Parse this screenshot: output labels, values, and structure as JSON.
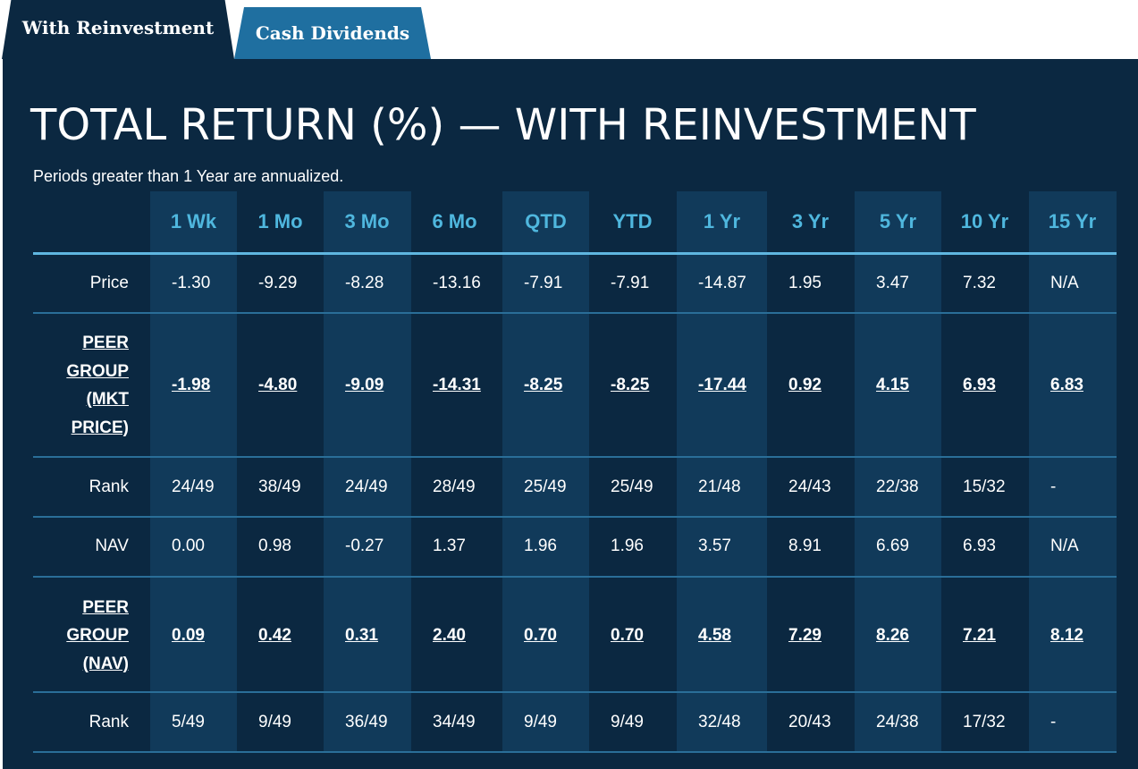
{
  "tabs": [
    {
      "label": "With Reinvestment",
      "active": true
    },
    {
      "label": "Cash Dividends",
      "active": false
    }
  ],
  "title": "TOTAL RETURN (%) — WITH REINVESTMENT",
  "subtitle": "Periods greater than 1 Year are annualized.",
  "columns": [
    "1 Wk",
    "1 Mo",
    "3 Mo",
    "6 Mo",
    "QTD",
    "YTD",
    "1 Yr",
    "3 Yr",
    "5 Yr",
    "10 Yr",
    "15 Yr"
  ],
  "rows": [
    {
      "label": "Price",
      "link": false,
      "values": [
        "-1.30",
        "-9.29",
        "-8.28",
        "-13.16",
        "-7.91",
        "-7.91",
        "-14.87",
        "1.95",
        "3.47",
        "7.32",
        "N/A"
      ]
    },
    {
      "label": "PEER GROUP (MKT PRICE)",
      "label_lines": [
        "PEER",
        "GROUP",
        "(MKT",
        "PRICE)"
      ],
      "link": true,
      "values": [
        "-1.98",
        "-4.80",
        "-9.09",
        "-14.31",
        "-8.25",
        "-8.25",
        "-17.44",
        "0.92",
        "4.15",
        "6.93",
        "6.83"
      ]
    },
    {
      "label": "Rank",
      "link": false,
      "values": [
        "24/49",
        "38/49",
        "24/49",
        "28/49",
        "25/49",
        "25/49",
        "21/48",
        "24/43",
        "22/38",
        "15/32",
        "-"
      ]
    },
    {
      "label": "NAV",
      "link": false,
      "values": [
        "0.00",
        "0.98",
        "-0.27",
        "1.37",
        "1.96",
        "1.96",
        "3.57",
        "8.91",
        "6.69",
        "6.93",
        "N/A"
      ]
    },
    {
      "label": "PEER GROUP (NAV)",
      "label_lines": [
        "PEER",
        "GROUP",
        "(NAV)"
      ],
      "link": true,
      "values": [
        "0.09",
        "0.42",
        "0.31",
        "2.40",
        "0.70",
        "0.70",
        "4.58",
        "7.29",
        "8.26",
        "7.21",
        "8.12"
      ]
    },
    {
      "label": "Rank",
      "link": false,
      "values": [
        "5/49",
        "9/49",
        "36/49",
        "34/49",
        "9/49",
        "9/49",
        "32/48",
        "20/43",
        "24/38",
        "17/32",
        "-"
      ]
    }
  ],
  "colors": {
    "panel": "#0b2841",
    "shaded_column": "#113a5a",
    "header_text": "#4fb7de",
    "active_tab": "#0b2841",
    "inactive_tab": "#1f6fa0"
  }
}
